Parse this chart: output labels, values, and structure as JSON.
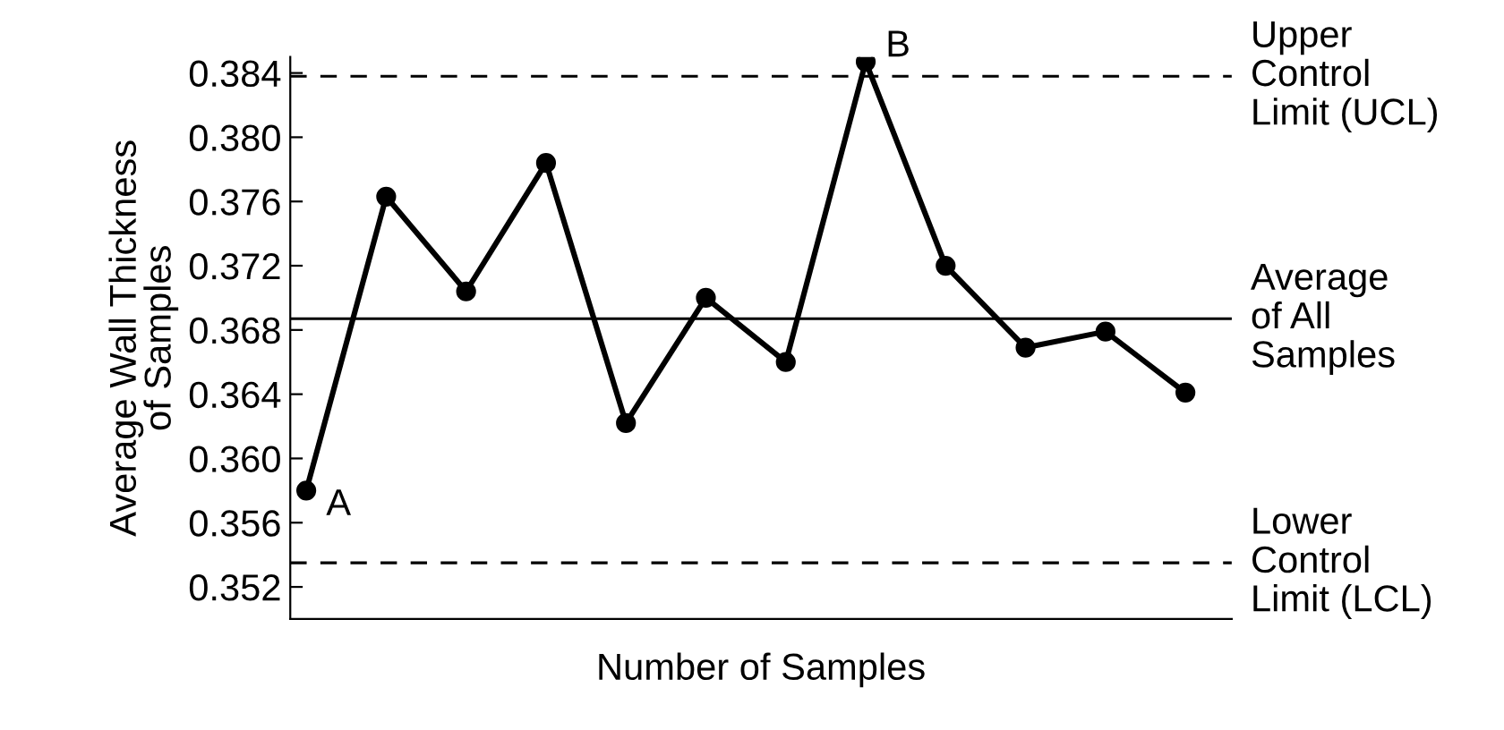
{
  "chart_data": {
    "type": "line",
    "xlabel": "Number of Samples",
    "ylabel": "Average Wall Thickness\nof Samples",
    "categories": [
      null,
      null,
      null,
      null,
      null,
      null,
      null,
      null,
      null,
      null,
      null,
      null
    ],
    "series": [
      {
        "color": "#000000",
        "values": [
          0.358,
          0.3763,
          0.3704,
          0.3784,
          0.3622,
          0.37,
          0.366,
          0.3847,
          0.372,
          0.3669,
          0.3679,
          0.3641
        ]
      }
    ],
    "ylim": [
      0.35,
      0.385
    ],
    "yticks": [
      {
        "value": 0.352,
        "label": "0.352"
      },
      {
        "value": 0.356,
        "label": "0.356"
      },
      {
        "value": 0.36,
        "label": "0.360"
      },
      {
        "value": 0.364,
        "label": "0.364"
      },
      {
        "value": 0.368,
        "label": "0.368"
      },
      {
        "value": 0.372,
        "label": "0.372"
      },
      {
        "value": 0.376,
        "label": "0.376"
      },
      {
        "value": 0.38,
        "label": "0.380"
      },
      {
        "value": 0.384,
        "label": "0.384"
      }
    ],
    "ref_lines": [
      {
        "axis": "y",
        "value": 0.3838,
        "label": "Upper\nControl\nLimit (UCL)",
        "line_style": "dashed",
        "color": "#000000"
      },
      {
        "axis": "y",
        "value": 0.3687,
        "label": "Average\nof All\nSamples",
        "line_style": "solid",
        "color": "#000000"
      },
      {
        "axis": "y",
        "value": 0.3535,
        "label": "Lower\nControl\nLimit (LCL)",
        "line_style": "dashed",
        "color": "#000000"
      }
    ],
    "annotations": [
      "A",
      "B"
    ],
    "marker": "circle",
    "line_style": "solid",
    "grid": false,
    "legend": false
  }
}
